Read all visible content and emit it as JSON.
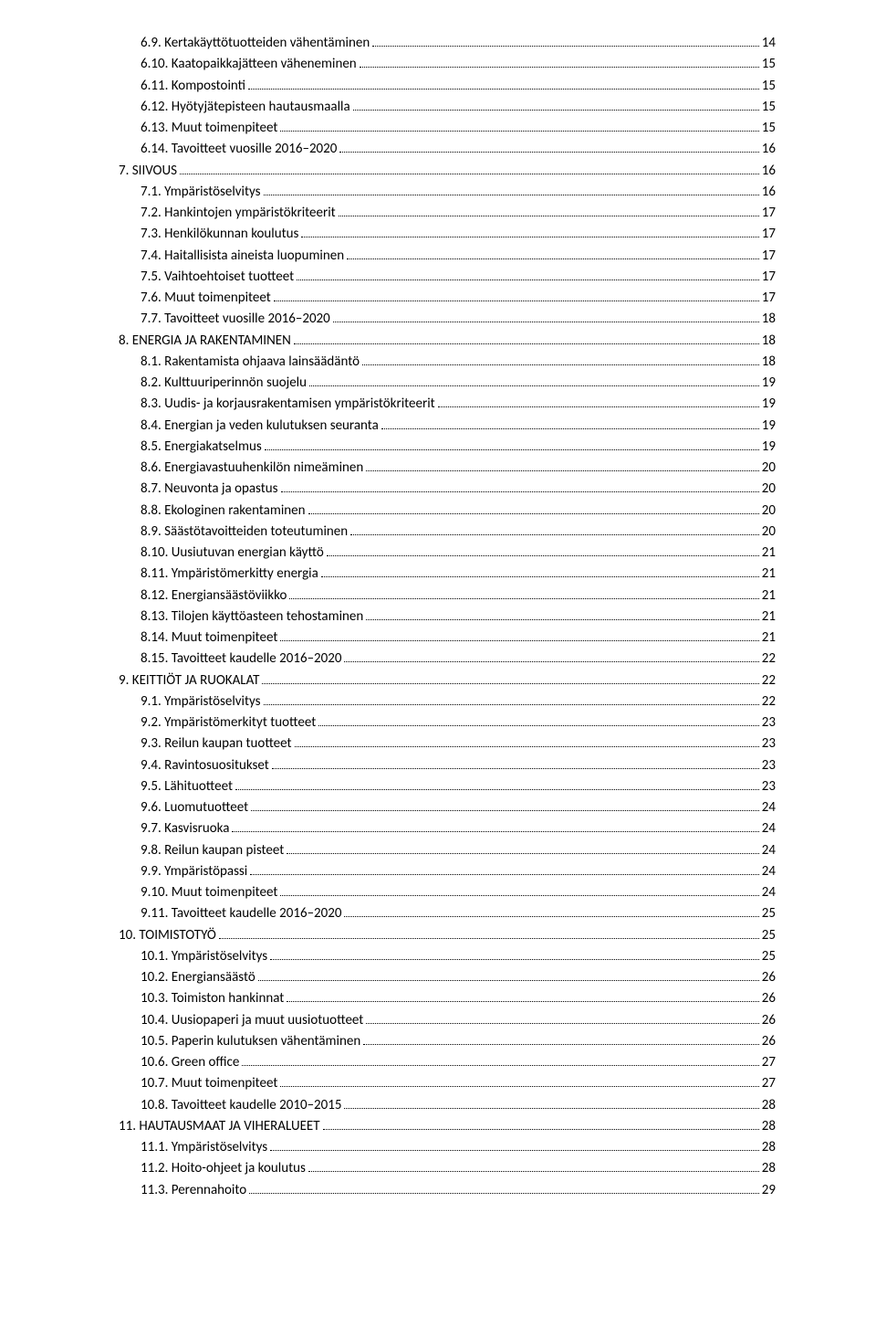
{
  "toc": [
    {
      "indent": 1,
      "label": "6.9. Kertakäyttötuotteiden vähentäminen",
      "page": "14"
    },
    {
      "indent": 1,
      "label": "6.10. Kaatopaikkajätteen väheneminen",
      "page": "15"
    },
    {
      "indent": 1,
      "label": "6.11. Kompostointi",
      "page": "15"
    },
    {
      "indent": 1,
      "label": "6.12. Hyötyjätepisteen hautausmaalla",
      "page": "15"
    },
    {
      "indent": 1,
      "label": "6.13. Muut toimenpiteet",
      "page": "15"
    },
    {
      "indent": 1,
      "label": "6.14. Tavoitteet vuosille 2016–2020",
      "page": "16"
    },
    {
      "indent": 0,
      "label": "7. SIIVOUS",
      "page": "16"
    },
    {
      "indent": 1,
      "label": "7.1. Ympäristöselvitys",
      "page": "16"
    },
    {
      "indent": 1,
      "label": "7.2. Hankintojen ympäristökriteerit",
      "page": "17"
    },
    {
      "indent": 1,
      "label": "7.3. Henkilökunnan koulutus",
      "page": "17"
    },
    {
      "indent": 1,
      "label": "7.4. Haitallisista aineista luopuminen",
      "page": "17"
    },
    {
      "indent": 1,
      "label": "7.5. Vaihtoehtoiset tuotteet",
      "page": "17"
    },
    {
      "indent": 1,
      "label": "7.6. Muut toimenpiteet",
      "page": "17"
    },
    {
      "indent": 1,
      "label": "7.7. Tavoitteet vuosille 2016–2020",
      "page": "18"
    },
    {
      "indent": 0,
      "label": "8. ENERGIA JA RAKENTAMINEN",
      "page": "18"
    },
    {
      "indent": 1,
      "label": "8.1. Rakentamista ohjaava lainsäädäntö",
      "page": "18"
    },
    {
      "indent": 1,
      "label": "8.2. Kulttuuriperinnön suojelu",
      "page": "19"
    },
    {
      "indent": 1,
      "label": "8.3. Uudis- ja korjausrakentamisen ympäristökriteerit",
      "page": "19"
    },
    {
      "indent": 1,
      "label": "8.4. Energian ja veden kulutuksen seuranta",
      "page": "19"
    },
    {
      "indent": 1,
      "label": "8.5. Energiakatselmus",
      "page": "19"
    },
    {
      "indent": 1,
      "label": "8.6. Energiavastuuhenkilön nimeäminen",
      "page": "20"
    },
    {
      "indent": 1,
      "label": "8.7. Neuvonta ja opastus",
      "page": "20"
    },
    {
      "indent": 1,
      "label": "8.8. Ekologinen rakentaminen",
      "page": "20"
    },
    {
      "indent": 1,
      "label": "8.9. Säästötavoitteiden toteutuminen",
      "page": "20"
    },
    {
      "indent": 1,
      "label": "8.10. Uusiutuvan energian käyttö",
      "page": "21"
    },
    {
      "indent": 1,
      "label": "8.11. Ympäristömerkitty energia",
      "page": "21"
    },
    {
      "indent": 1,
      "label": "8.12. Energiansäästöviikko",
      "page": "21"
    },
    {
      "indent": 1,
      "label": "8.13. Tilojen käyttöasteen tehostaminen",
      "page": "21"
    },
    {
      "indent": 1,
      "label": "8.14. Muut toimenpiteet",
      "page": "21"
    },
    {
      "indent": 1,
      "label": "8.15. Tavoitteet kaudelle 2016–2020",
      "page": "22"
    },
    {
      "indent": 0,
      "label": "9. KEITTIÖT JA RUOKALAT",
      "page": "22"
    },
    {
      "indent": 1,
      "label": "9.1. Ympäristöselvitys",
      "page": "22"
    },
    {
      "indent": 1,
      "label": "9.2. Ympäristömerkityt tuotteet",
      "page": "23"
    },
    {
      "indent": 1,
      "label": "9.3. Reilun kaupan tuotteet",
      "page": "23"
    },
    {
      "indent": 1,
      "label": "9.4. Ravintosuositukset",
      "page": "23"
    },
    {
      "indent": 1,
      "label": "9.5. Lähituotteet",
      "page": "23"
    },
    {
      "indent": 1,
      "label": "9.6. Luomutuotteet",
      "page": "24"
    },
    {
      "indent": 1,
      "label": "9.7. Kasvisruoka",
      "page": "24"
    },
    {
      "indent": 1,
      "label": "9.8. Reilun kaupan pisteet",
      "page": "24"
    },
    {
      "indent": 1,
      "label": "9.9. Ympäristöpassi",
      "page": "24"
    },
    {
      "indent": 1,
      "label": "9.10. Muut toimenpiteet",
      "page": "24"
    },
    {
      "indent": 1,
      "label": "9.11. Tavoitteet kaudelle 2016–2020",
      "page": "25"
    },
    {
      "indent": 0,
      "label": "10. TOIMISTOTYÖ",
      "page": "25"
    },
    {
      "indent": 1,
      "label": "10.1. Ympäristöselvitys",
      "page": "25"
    },
    {
      "indent": 1,
      "label": "10.2. Energiansäästö",
      "page": "26"
    },
    {
      "indent": 1,
      "label": "10.3. Toimiston hankinnat",
      "page": "26"
    },
    {
      "indent": 1,
      "label": "10.4. Uusiopaperi ja muut uusiotuotteet",
      "page": "26"
    },
    {
      "indent": 1,
      "label": "10.5. Paperin kulutuksen vähentäminen",
      "page": "26"
    },
    {
      "indent": 1,
      "label": "10.6. Green office",
      "page": "27"
    },
    {
      "indent": 1,
      "label": "10.7. Muut toimenpiteet",
      "page": "27"
    },
    {
      "indent": 1,
      "label": "10.8. Tavoitteet kaudelle 2010–2015",
      "page": "28"
    },
    {
      "indent": 0,
      "label": "11. HAUTAUSMAAT JA VIHERALUEET",
      "page": "28"
    },
    {
      "indent": 1,
      "label": "11.1. Ympäristöselvitys",
      "page": "28"
    },
    {
      "indent": 1,
      "label": "11.2. Hoito-ohjeet ja koulutus",
      "page": "28"
    },
    {
      "indent": 1,
      "label": "11.3. Perennahoito",
      "page": "29"
    }
  ]
}
